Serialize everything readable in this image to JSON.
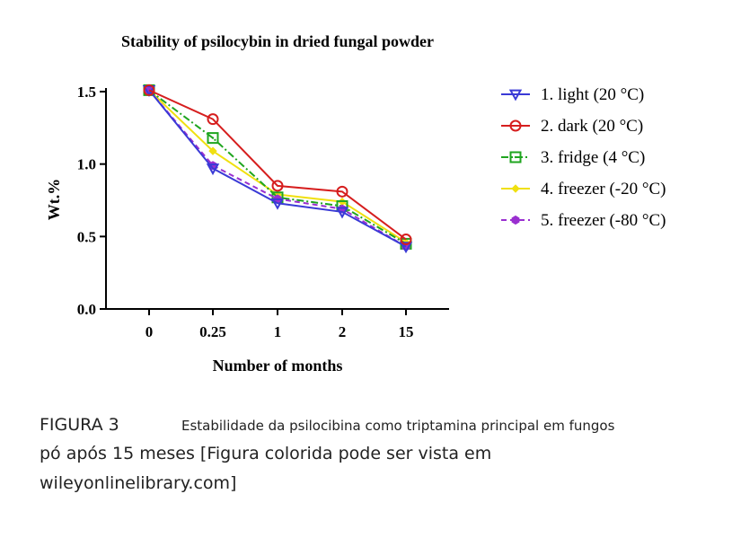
{
  "chart_data": {
    "type": "line",
    "title": "Stability of psilocybin in dried fungal powder",
    "xlabel": "Number of months",
    "ylabel": "Wt.%",
    "categories": [
      "0",
      "0.25",
      "1",
      "2",
      "15"
    ],
    "ylim": [
      0,
      1.5
    ],
    "yticks": [
      "0.0",
      "0.5",
      "1.0",
      "1.5"
    ],
    "legend_position": "right",
    "series": [
      {
        "name": "1. light (20 °C)",
        "color": "#3a3ad6",
        "marker": "triangle-down",
        "dash": "solid",
        "values": [
          1.51,
          0.97,
          0.73,
          0.67,
          0.43
        ]
      },
      {
        "name": "2. dark (20 °C)",
        "color": "#d61e1e",
        "marker": "circle",
        "dash": "solid",
        "values": [
          1.51,
          1.31,
          0.85,
          0.81,
          0.48
        ]
      },
      {
        "name": "3. fridge (4 °C)",
        "color": "#1fa51f",
        "marker": "square",
        "dash": "dashdot",
        "values": [
          1.51,
          1.18,
          0.77,
          0.71,
          0.45
        ]
      },
      {
        "name": "4. freezer (-20 °C)",
        "color": "#f0e010",
        "marker": "diamond",
        "dash": "solid",
        "values": [
          1.51,
          1.09,
          0.79,
          0.74,
          0.46
        ]
      },
      {
        "name": "5. freezer (-80 °C)",
        "color": "#9a2fd0",
        "marker": "hexagon",
        "dash": "dashed",
        "values": [
          1.51,
          0.99,
          0.76,
          0.69,
          0.43
        ]
      }
    ]
  },
  "caption": {
    "label": "FIGURA 3",
    "line1": "Estabilidade da psilocibina como triptamina principal em fungos",
    "line2": "pó após 15 meses [Figura colorida pode ser vista em",
    "line3": "wileyonlinelibrary.com]"
  }
}
